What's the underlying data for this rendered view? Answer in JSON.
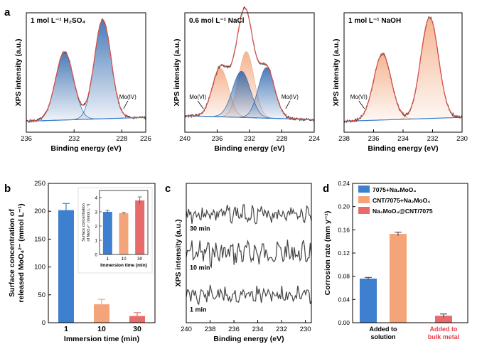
{
  "figure": {
    "panel_labels": [
      "a",
      "b",
      "c",
      "d"
    ],
    "xps_axis_label": "Binding energy (eV)",
    "xps_y_label": "XPS intensity (a.u.)",
    "b_y_label_line1": "Surface concentration of",
    "b_y_label_line2": "released MoO₄²⁻ (mmol L⁻¹)",
    "b_x_label": "Immersion time (min)",
    "b_inset_y_label_line1": "Surface concentration",
    "b_inset_y_label_line2": "of MoO₄²⁻ (mmol L⁻¹)",
    "b_inset_x_label": "Immersion time (min)",
    "d_y_label": "Corrosion rate (mm y⁻¹)"
  },
  "colors": {
    "blue": "#3f7fcf",
    "orange": "#f3a478",
    "red": "#e86b6b",
    "red_text": "#e8404a",
    "fit_red": "#e0524d",
    "dark_blue": "#1f5ca8",
    "raw": "#333333"
  },
  "chart_data": [
    {
      "id": "a1",
      "type": "line",
      "condition": "1 mol L⁻¹ H₂SO₄",
      "xlabel": "Binding energy (eV)",
      "ylabel": "XPS intensity (a.u.)",
      "xlim": [
        236,
        226
      ],
      "xticks": [
        236,
        232,
        228,
        226
      ],
      "components": [
        {
          "species": "Mo(IV)",
          "center": 232.8,
          "height": 0.62,
          "width": 0.75,
          "color": "blue"
        },
        {
          "species": "Mo(IV)",
          "center": 229.6,
          "height": 0.9,
          "width": 0.7,
          "color": "blue"
        }
      ],
      "annotations": [
        {
          "text": "Mo(IV)",
          "x": 227.5
        }
      ]
    },
    {
      "id": "a2",
      "type": "line",
      "condition": "0.6 mol L⁻¹ NaCl",
      "xlabel": "Binding energy (eV)",
      "ylabel": "XPS intensity (a.u.)",
      "xlim": [
        240,
        224
      ],
      "xticks": [
        240,
        236,
        232,
        228,
        224
      ],
      "components": [
        {
          "species": "Mo(VI)",
          "center": 235.6,
          "height": 0.44,
          "width": 1.0,
          "color": "orange"
        },
        {
          "species": "Mo(VI)",
          "center": 232.4,
          "height": 0.6,
          "width": 0.95,
          "color": "orange"
        },
        {
          "species": "Mo(IV)",
          "center": 233.0,
          "height": 0.42,
          "width": 1.1,
          "color": "blue"
        },
        {
          "species": "Mo(IV)",
          "center": 229.9,
          "height": 0.46,
          "width": 1.0,
          "color": "blue"
        }
      ],
      "annotations": [
        {
          "text": "Mo(VI)",
          "x": 238.4
        },
        {
          "text": "Mo(IV)",
          "x": 227.0
        }
      ]
    },
    {
      "id": "a3",
      "type": "line",
      "condition": "1 mol L⁻¹ NaOH",
      "xlabel": "Binding energy (eV)",
      "ylabel": "XPS intensity (a.u.)",
      "xlim": [
        238,
        230
      ],
      "xticks": [
        238,
        236,
        234,
        232,
        230
      ],
      "components": [
        {
          "species": "Mo(VI)",
          "center": 235.4,
          "height": 0.6,
          "width": 0.6,
          "color": "orange"
        },
        {
          "species": "Mo(VI)",
          "center": 232.2,
          "height": 0.92,
          "width": 0.6,
          "color": "orange"
        }
      ],
      "annotations": [
        {
          "text": "Mo(VI)",
          "x": 237.0
        }
      ]
    },
    {
      "id": "b",
      "type": "bar",
      "categories": [
        "1",
        "10",
        "30"
      ],
      "values": [
        202,
        33,
        12
      ],
      "errors": [
        12,
        9,
        6
      ],
      "colors": [
        "blue",
        "orange",
        "red"
      ],
      "xlabel": "Immersion time (min)",
      "ylabel": "Surface concentration of released MoO₄²⁻ (mmol L⁻¹)",
      "ylim": [
        0,
        250
      ],
      "yticks": [
        0,
        50,
        100,
        150,
        200,
        250
      ],
      "inset": {
        "type": "bar",
        "categories": [
          "1",
          "10",
          "30"
        ],
        "values": [
          3.0,
          2.9,
          3.8
        ],
        "errors": [
          0.1,
          0.08,
          0.25
        ],
        "ylim": [
          0,
          4.5
        ],
        "yticks": [
          0,
          1,
          2,
          3,
          4
        ],
        "xlabel": "Immersion time (min)",
        "ylabel": "Surface concentration of MoO₄²⁻ (mmol L⁻¹)"
      }
    },
    {
      "id": "c",
      "type": "line",
      "xlabel": "Binding energy (eV)",
      "ylabel": "XPS intensity (a.u.)",
      "xlim": [
        240,
        229.5
      ],
      "xticks": [
        240,
        238,
        236,
        234,
        232,
        230
      ],
      "traces": [
        {
          "label": "30 min",
          "amplitude": 0.05,
          "seed": 3
        },
        {
          "label": "10 min",
          "amplitude": 0.07,
          "seed": 7
        },
        {
          "label": "1 min",
          "amplitude": 0.05,
          "seed": 11
        }
      ]
    },
    {
      "id": "d",
      "type": "bar",
      "groups": [
        "Added to solution",
        "Added to bulk metal"
      ],
      "group_label_lines": [
        [
          "Added to",
          "solution"
        ],
        [
          "Added to",
          "bulk metal"
        ]
      ],
      "series": [
        {
          "name": "7075+Na₂MoO₄",
          "value": 0.076,
          "error": 0.002,
          "group": 0,
          "color": "blue"
        },
        {
          "name": "CNT/7075+Na₂MoO₄",
          "value": 0.153,
          "error": 0.003,
          "group": 0,
          "color": "orange"
        },
        {
          "name": "Na₂MoO₄@CNT/7075",
          "value": 0.012,
          "error": 0.003,
          "group": 1,
          "color": "red"
        }
      ],
      "ylabel": "Corrosion rate (mm y⁻¹)",
      "ylim": [
        0,
        0.24
      ],
      "yticks": [
        "0.00",
        "0.04",
        "0.08",
        "0.12",
        "0.16",
        "0.20",
        "0.24"
      ]
    }
  ]
}
